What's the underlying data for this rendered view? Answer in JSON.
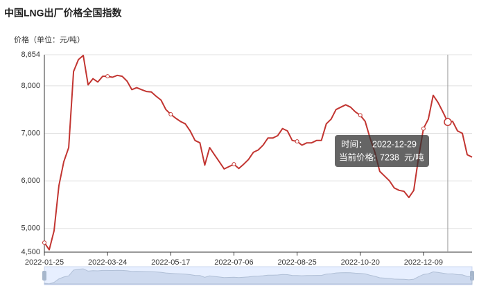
{
  "chart_data": {
    "type": "line",
    "title": "中国LNG出厂价格全国指数",
    "y_axis_label": "价格（单位：元/吨）",
    "categories": [
      "2022-01-25",
      null,
      null,
      null,
      null,
      null,
      null,
      null,
      null,
      null,
      null,
      null,
      null,
      "2022-03-24",
      null,
      null,
      null,
      null,
      null,
      null,
      null,
      null,
      null,
      null,
      null,
      null,
      "2022-05-17",
      null,
      null,
      null,
      null,
      null,
      null,
      null,
      null,
      null,
      null,
      null,
      null,
      "2022-07-06",
      null,
      null,
      null,
      null,
      null,
      null,
      null,
      null,
      null,
      null,
      null,
      null,
      "2022-08-25",
      null,
      null,
      null,
      null,
      null,
      null,
      null,
      null,
      null,
      null,
      null,
      null,
      "2022-10-20",
      null,
      null,
      null,
      null,
      null,
      null,
      null,
      null,
      null,
      null,
      null,
      null,
      "2022-12-09",
      null,
      null,
      null,
      null,
      null,
      null,
      null,
      null,
      null,
      null
    ],
    "series": [
      {
        "name": "价格",
        "color": "#c23531",
        "values": [
          4700,
          4550,
          4950,
          5900,
          6400,
          6700,
          8300,
          8550,
          8640,
          8020,
          8150,
          8080,
          8200,
          8200,
          8180,
          8220,
          8200,
          8100,
          7920,
          7960,
          7920,
          7880,
          7870,
          7780,
          7700,
          7500,
          7400,
          7320,
          7250,
          7200,
          7050,
          6850,
          6800,
          6330,
          6700,
          6550,
          6400,
          6250,
          6300,
          6350,
          6260,
          6350,
          6450,
          6600,
          6650,
          6750,
          6900,
          6900,
          6950,
          7100,
          7050,
          6850,
          6830,
          6750,
          6800,
          6800,
          6850,
          6850,
          7200,
          7300,
          7500,
          7550,
          7600,
          7550,
          7450,
          7380,
          7250,
          6900,
          6600,
          6200,
          6100,
          6000,
          5850,
          5800,
          5780,
          5650,
          5800,
          6500,
          7100,
          7300,
          7800,
          7650,
          7450,
          7238,
          7250,
          7050,
          7000,
          6550,
          6500
        ]
      }
    ],
    "ylim": [
      4500,
      8654
    ],
    "yticks": [
      {
        "value": 4500,
        "label": "4,500"
      },
      {
        "value": 5000,
        "label": "5,000"
      },
      {
        "value": 6000,
        "label": "6,000"
      },
      {
        "value": 7000,
        "label": "7,000"
      },
      {
        "value": 8000,
        "label": "8,000"
      },
      {
        "value": 8654,
        "label": "8,654"
      }
    ],
    "grid": true,
    "tooltip": {
      "time_label": "时间：",
      "time": "2022-12-29",
      "price_label": "当前价格:",
      "value": 7238,
      "unit": "元/吨"
    }
  }
}
